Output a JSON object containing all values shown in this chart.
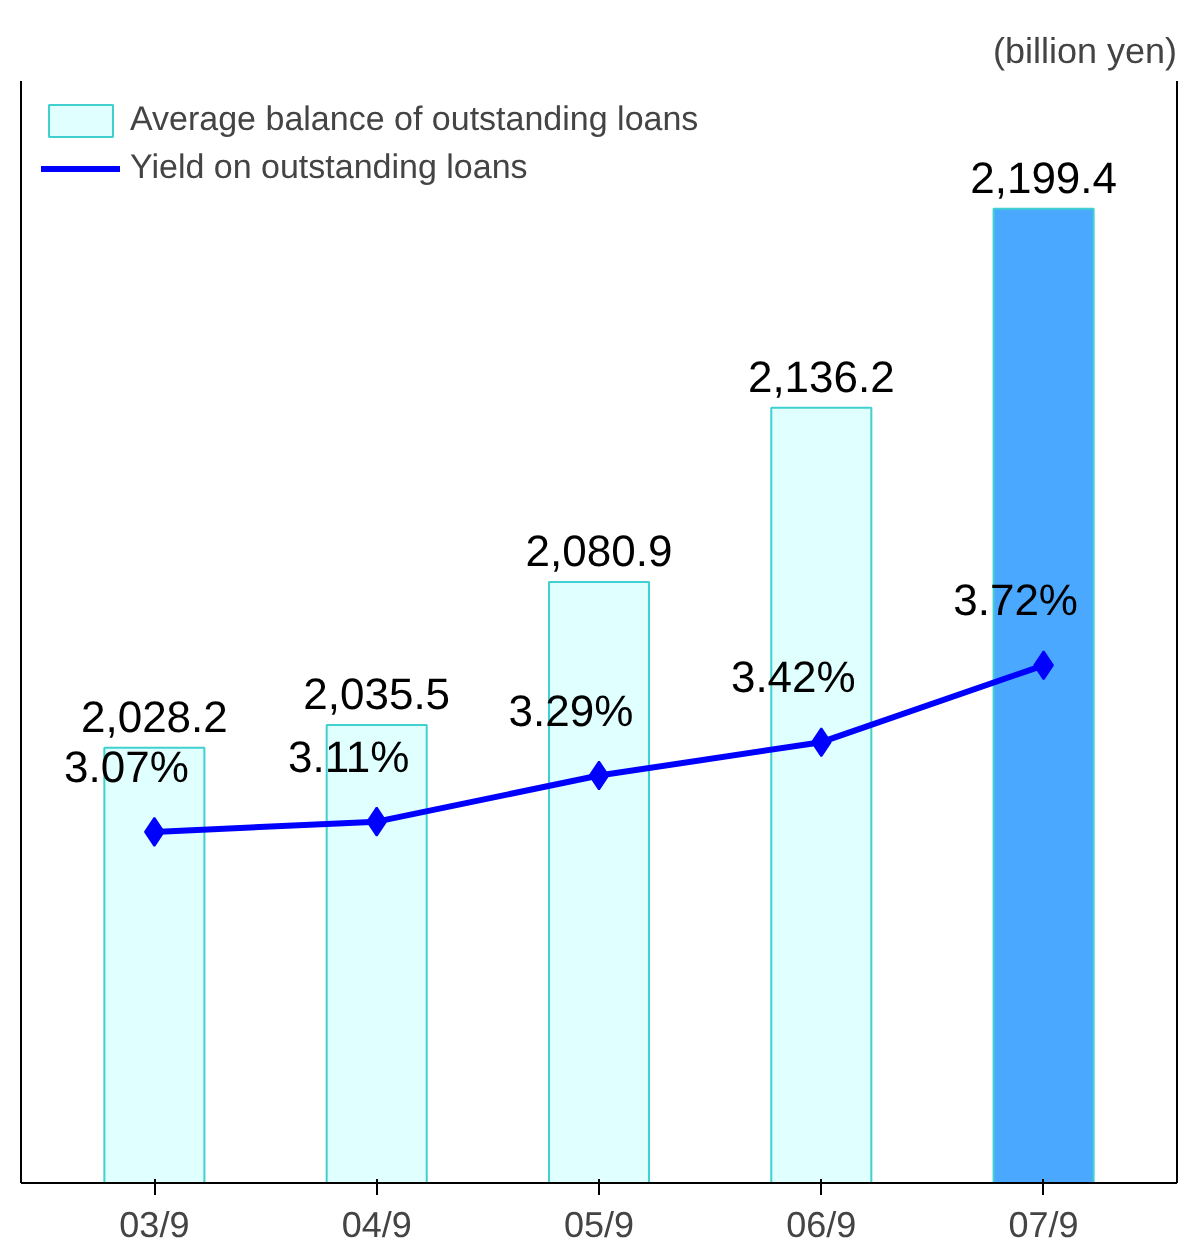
{
  "chart_data": {
    "type": "bar",
    "categories": [
      "03/9",
      "04/9",
      "05/9",
      "06/9",
      "07/9"
    ],
    "series": [
      {
        "name": "Average balance of outstanding loans",
        "color": "#e0ffff",
        "colors": [
          "#e0ffff",
          "#e0ffff",
          "#e0ffff",
          "#e0ffff",
          "#4aa8ff"
        ],
        "values": [
          2028.2,
          2035.5,
          2080.9,
          2136.2,
          2199.4
        ],
        "value_labels": [
          "2,028.2",
          "2,035.5",
          "2,080.9",
          "2,136.2",
          "2,199.4"
        ]
      },
      {
        "name": "Yield on outstanding loans",
        "type": "line",
        "axis": "y2",
        "color": "#0000ff",
        "marker": "diamond",
        "values": [
          3.07,
          3.11,
          3.29,
          3.42,
          3.72
        ],
        "value_labels": [
          "3.07%",
          "3.11%",
          "3.29%",
          "3.42%",
          "3.72%"
        ]
      }
    ],
    "ylim": [
      1890,
      2240
    ],
    "y2lim": [
      1.7,
      6.0
    ],
    "annotations": [
      "(billion yen)"
    ],
    "legend": "top left",
    "grid": false,
    "tick_labels": "x"
  }
}
